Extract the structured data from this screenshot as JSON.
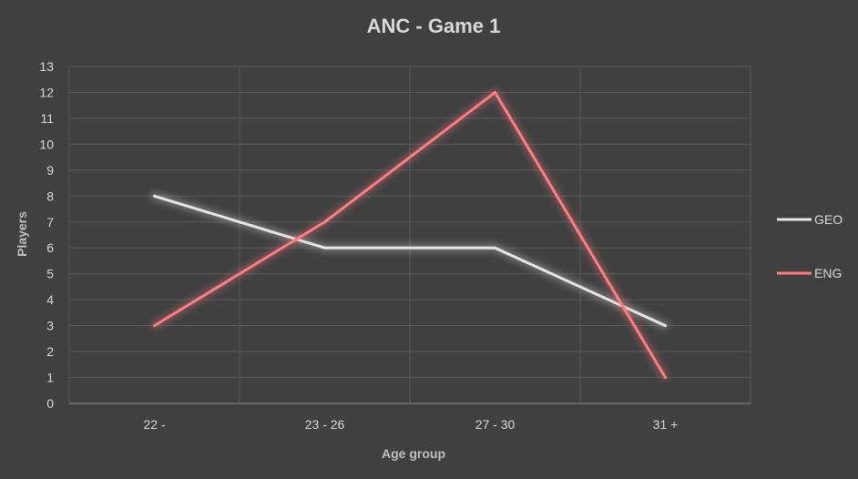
{
  "chart_data": {
    "type": "line",
    "title": "ANC - Game 1",
    "xlabel": "Age group",
    "ylabel": "Players",
    "categories": [
      "22 -",
      "23 - 26",
      "27 - 30",
      "31 +"
    ],
    "ylim": [
      0,
      13
    ],
    "yticks": [
      0,
      1,
      2,
      3,
      4,
      5,
      6,
      7,
      8,
      9,
      10,
      11,
      12,
      13
    ],
    "grid": true,
    "legend_position": "right",
    "series": [
      {
        "name": "GEO",
        "values": [
          8,
          6,
          6,
          3
        ],
        "color": "#e6e6e6"
      },
      {
        "name": "ENG",
        "values": [
          3,
          7,
          12,
          1
        ],
        "color": "#ff7c80"
      }
    ],
    "colors": {
      "background": "#404040",
      "grid": "#595959",
      "text": "#d9d9d9"
    }
  }
}
